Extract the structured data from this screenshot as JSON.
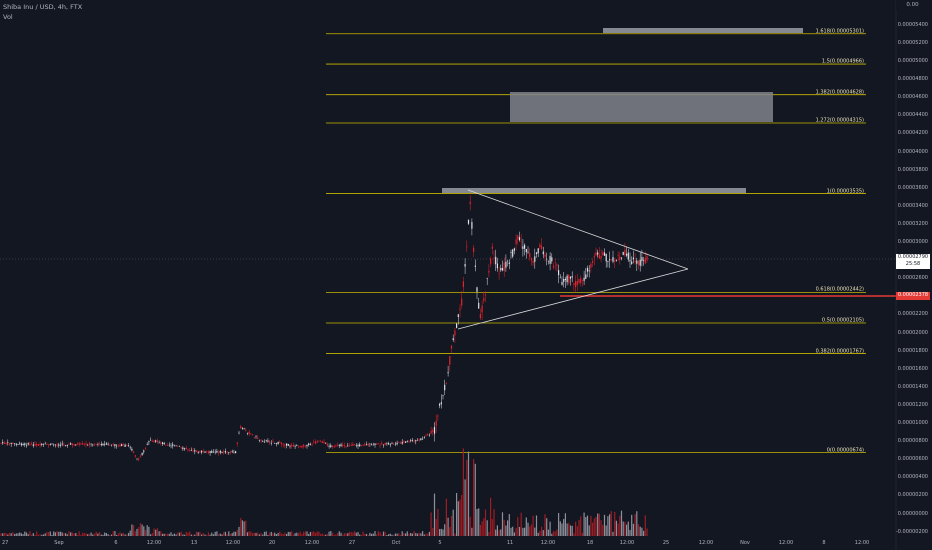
{
  "header": {
    "title": "Shiba Inu / USD, 4h, FTX",
    "volume_label": "Vol"
  },
  "price_axis": {
    "top_box": "0.00",
    "labels": [
      "0.00005400",
      "0.00005200",
      "0.00005000",
      "0.00004800",
      "0.00004600",
      "0.00004400",
      "0.00004200",
      "0.00004000",
      "0.00003800",
      "0.00003600",
      "0.00003400",
      "0.00003200",
      "0.00003000",
      "0.00002800",
      "0.00002600",
      "0.00002400",
      "0.00002200",
      "0.00002000",
      "0.00001800",
      "0.00001600",
      "0.00001400",
      "0.00001200",
      "0.00001000",
      "0.00000800",
      "0.00000600",
      "0.00000400",
      "0.00000200",
      "0.00000000",
      "-0.00000200"
    ],
    "last_price": "0.00002790",
    "countdown": "25:58",
    "alert_price": "0.00002378"
  },
  "time_axis": {
    "labels": [
      "27",
      "Sep",
      "6",
      "12:00",
      "13",
      "12:00",
      "20",
      "12:00",
      "27",
      "Oct",
      "5",
      "11",
      "12:00",
      "18",
      "12:00",
      "25",
      "12:00",
      "Nov",
      "12:00",
      "8",
      "12:00"
    ]
  },
  "fib_levels": [
    {
      "label": "1.618(0.00005301)",
      "price": 5.301e-05
    },
    {
      "label": "1.5(0.00004966)",
      "price": 4.966e-05
    },
    {
      "label": "1.382(0.00004628)",
      "price": 4.628e-05
    },
    {
      "label": "1.272(0.00004315)",
      "price": 4.315e-05
    },
    {
      "label": "1(0.00003535)",
      "price": 3.535e-05
    },
    {
      "label": "0.618(0.00002442)",
      "price": 2.442e-05
    },
    {
      "label": "0.5(0.00002105)",
      "price": 2.105e-05
    },
    {
      "label": "0.382(0.00001767)",
      "price": 1.767e-05
    },
    {
      "label": "0(0.00000674)",
      "price": 6.74e-06
    }
  ],
  "colors": {
    "background": "#131722",
    "up": "#e0e3eb",
    "down": "#e8222c",
    "fib": "#c9b800",
    "zone": "#8a8d95",
    "pattern": "#d9d9d9",
    "alert": "#e53935"
  }
}
